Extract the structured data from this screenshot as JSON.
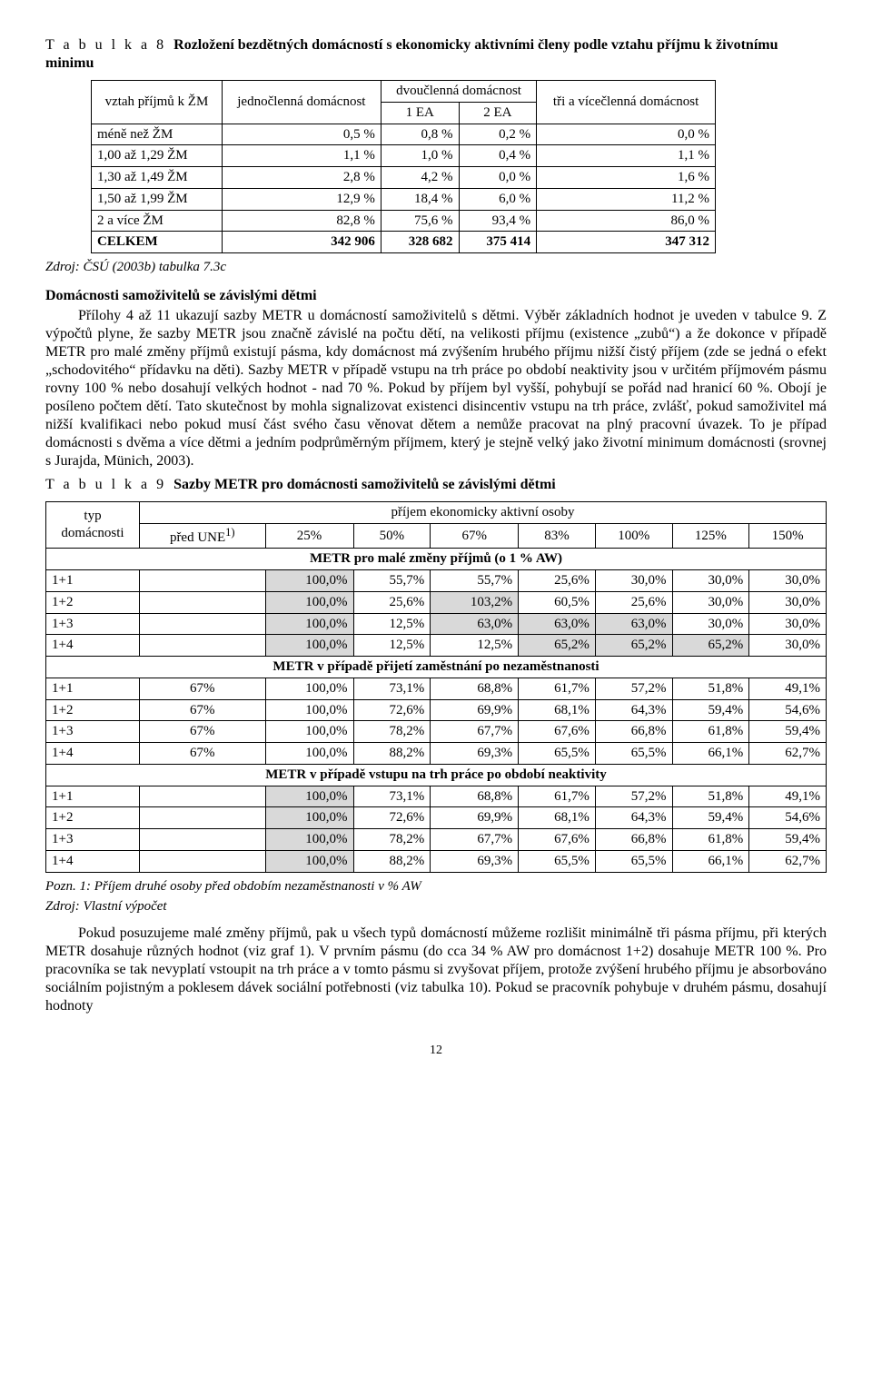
{
  "table8": {
    "heading_prefix": "T a b u l k a 8",
    "heading_rest": "Rozložení bezdětných domácností s ekonomicky aktivními členy podle vztahu příjmu k životnímu minimu",
    "col_labels": {
      "rel": "vztah příjmů k ŽM",
      "single": "jednočlenná domácnost",
      "two": "dvoučlenná domácnost",
      "ea1": "1 EA",
      "ea2": "2 EA",
      "three": "tři a vícečlenná domácnost"
    },
    "rows": [
      {
        "label": "méně než ŽM",
        "c1": "0,5 %",
        "c2": "0,8 %",
        "c3": "0,2 %",
        "c4": "0,0 %"
      },
      {
        "label": "1,00 až 1,29 ŽM",
        "c1": "1,1 %",
        "c2": "1,0 %",
        "c3": "0,4 %",
        "c4": "1,1 %"
      },
      {
        "label": "1,30 až 1,49 ŽM",
        "c1": "2,8 %",
        "c2": "4,2 %",
        "c3": "0,0 %",
        "c4": "1,6 %"
      },
      {
        "label": "1,50 až 1,99 ŽM",
        "c1": "12,9 %",
        "c2": "18,4 %",
        "c3": "6,0 %",
        "c4": "11,2 %"
      },
      {
        "label": "2 a více ŽM",
        "c1": "82,8 %",
        "c2": "75,6 %",
        "c3": "93,4 %",
        "c4": "86,0 %"
      },
      {
        "label": "CELKEM",
        "c1": "342 906",
        "c2": "328 682",
        "c3": "375 414",
        "c4": "347 312",
        "bold": true
      }
    ],
    "source": "Zdroj: ČSÚ (2003b) tabulka 7.3c"
  },
  "section1": {
    "subheading": "Domácnosti samoživitelů se závislými dětmi",
    "para": "Přílohy 4 až 11 ukazují sazby METR u domácností samoživitelů s dětmi. Výběr základních hodnot je uveden v tabulce 9. Z výpočtů plyne, že sazby METR jsou značně závislé na počtu dětí, na velikosti příjmu (existence „zubů“) a že dokonce v případě METR pro malé změny příjmů existují pásma, kdy domácnost má zvýšením hrubého příjmu nižší čistý příjem (zde se jedná o efekt „schodovitého“ přídavku na děti). Sazby METR v případě vstupu na trh práce po období neaktivity jsou v určitém příjmovém pásmu rovny 100 % nebo dosahují velkých hodnot - nad 70 %. Pokud by příjem byl vyšší, pohybují se pořád nad hranicí 60 %. Obojí je posíleno počtem dětí. Tato skutečnost by mohla signalizovat existenci disincentiv vstupu na trh práce, zvlášť, pokud samoživitel má nižší kvalifikaci nebo pokud musí část svého času věnovat dětem a nemůže pracovat na plný pracovní úvazek. To je případ domácnosti s dvěma a více dětmi a jedním podprůměrným příjmem, který je stejně velký jako životní minimum domácnosti (srovnej s Jurajda, Münich, 2003)."
  },
  "table9": {
    "heading_prefix": "T a b  u l k a 9",
    "heading_rest": "Sazby METR pro domácnosti samoživitelů se závislými dětmi",
    "head": {
      "type": "typ domácnosti",
      "income": "příjem ekonomicky aktivní osoby",
      "before": "před UNE",
      "sup": "1)",
      "pct": [
        "25%",
        "50%",
        "67%",
        "83%",
        "100%",
        "125%",
        "150%"
      ]
    },
    "section_a": "METR pro malé změny příjmů (o 1 % AW)",
    "rows_a": [
      {
        "label": "1+1",
        "v": [
          "100,0%",
          "55,7%",
          "55,7%",
          "25,6%",
          "30,0%",
          "30,0%",
          "30,0%"
        ],
        "shade": [
          0
        ]
      },
      {
        "label": "1+2",
        "v": [
          "100,0%",
          "25,6%",
          "103,2%",
          "60,5%",
          "25,6%",
          "30,0%",
          "30,0%"
        ],
        "shade": [
          0,
          2
        ]
      },
      {
        "label": "1+3",
        "v": [
          "100,0%",
          "12,5%",
          "63,0%",
          "63,0%",
          "63,0%",
          "30,0%",
          "30,0%"
        ],
        "shade": [
          0,
          2,
          3,
          4
        ]
      },
      {
        "label": "1+4",
        "v": [
          "100,0%",
          "12,5%",
          "12,5%",
          "65,2%",
          "65,2%",
          "65,2%",
          "30,0%"
        ],
        "shade": [
          0,
          3,
          4,
          5
        ]
      }
    ],
    "section_b": "METR v případě přijetí zaměstnání po nezaměstnanosti",
    "rows_b": [
      {
        "label": "1+1",
        "before": "67%",
        "v": [
          "100,0%",
          "73,1%",
          "68,8%",
          "61,7%",
          "57,2%",
          "51,8%",
          "49,1%"
        ]
      },
      {
        "label": "1+2",
        "before": "67%",
        "v": [
          "100,0%",
          "72,6%",
          "69,9%",
          "68,1%",
          "64,3%",
          "59,4%",
          "54,6%"
        ]
      },
      {
        "label": "1+3",
        "before": "67%",
        "v": [
          "100,0%",
          "78,2%",
          "67,7%",
          "67,6%",
          "66,8%",
          "61,8%",
          "59,4%"
        ]
      },
      {
        "label": "1+4",
        "before": "67%",
        "v": [
          "100,0%",
          "88,2%",
          "69,3%",
          "65,5%",
          "65,5%",
          "66,1%",
          "62,7%"
        ]
      }
    ],
    "section_c": "METR v případě vstupu na trh práce po období neaktivity",
    "rows_c": [
      {
        "label": "1+1",
        "v": [
          "100,0%",
          "73,1%",
          "68,8%",
          "61,7%",
          "57,2%",
          "51,8%",
          "49,1%"
        ],
        "shade": [
          0
        ]
      },
      {
        "label": "1+2",
        "v": [
          "100,0%",
          "72,6%",
          "69,9%",
          "68,1%",
          "64,3%",
          "59,4%",
          "54,6%"
        ],
        "shade": [
          0
        ]
      },
      {
        "label": "1+3",
        "v": [
          "100,0%",
          "78,2%",
          "67,7%",
          "67,6%",
          "66,8%",
          "61,8%",
          "59,4%"
        ],
        "shade": [
          0
        ]
      },
      {
        "label": "1+4",
        "v": [
          "100,0%",
          "88,2%",
          "69,3%",
          "65,5%",
          "65,5%",
          "66,1%",
          "62,7%"
        ],
        "shade": [
          0
        ]
      }
    ],
    "note1": "Pozn. 1: Příjem druhé osoby před obdobím nezaměstnanosti v % AW",
    "note2": "Zdroj: Vlastní výpočet"
  },
  "para2": "Pokud posuzujeme malé změny příjmů, pak u všech typů domácností můžeme rozlišit minimálně tři pásma příjmu, při kterých METR dosahuje různých hodnot (viz graf 1). V prvním pásmu (do cca 34 % AW pro domácnost 1+2) dosahuje METR 100 %. Pro pracovníka se tak nevyplatí vstoupit na trh práce a v tomto pásmu si zvyšovat příjem, protože zvýšení hrubého příjmu je absorbováno sociálním pojistným a poklesem dávek sociální potřebnosti (viz tabulka 10). Pokud se pracovník pohybuje v druhém pásmu, dosahují hodnoty",
  "pagenum": "12"
}
